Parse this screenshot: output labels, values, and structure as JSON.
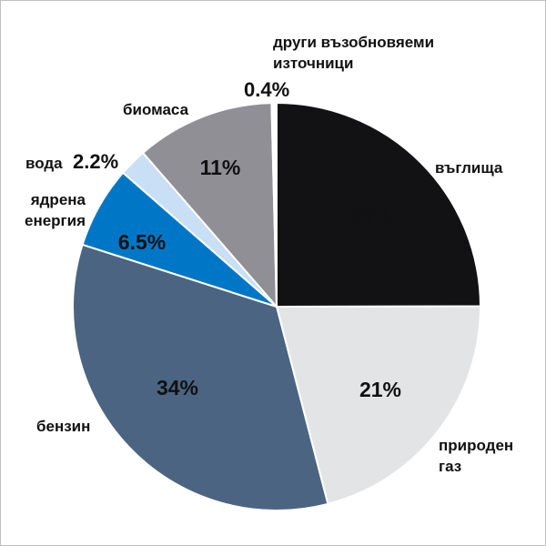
{
  "chart_data": {
    "type": "pie",
    "slices": [
      {
        "label": [
          "въглища"
        ],
        "value": 25,
        "value_label": "25%",
        "color": "#121214",
        "pct_color": "#ffffff"
      },
      {
        "label": [
          "природен",
          "газ"
        ],
        "value": 21,
        "value_label": "21%",
        "color": "#e3e4e6",
        "pct_color": "#111111"
      },
      {
        "label": [
          "бензин"
        ],
        "value": 34,
        "value_label": "34%",
        "color": "#4b6482",
        "pct_color": "#ffffff"
      },
      {
        "label": [
          "ядрена",
          "енергия"
        ],
        "value": 6.5,
        "value_label": "6.5%",
        "color": "#0077c6",
        "pct_color": "#ffffff"
      },
      {
        "label": [
          "вода"
        ],
        "value": 2.2,
        "value_label": "2.2%",
        "color": "#c8dff5",
        "pct_color": "#111111"
      },
      {
        "label": [
          "биомаса"
        ],
        "value": 11,
        "value_label": "11%",
        "color": "#8f8f95",
        "pct_color": "#ffffff"
      },
      {
        "label": [
          "други възобновяеми",
          "източници"
        ],
        "value": 0.4,
        "value_label": "0.4%",
        "color": "#ffffff",
        "pct_color": "#111111"
      }
    ],
    "start": "top",
    "direction": "clockwise"
  }
}
